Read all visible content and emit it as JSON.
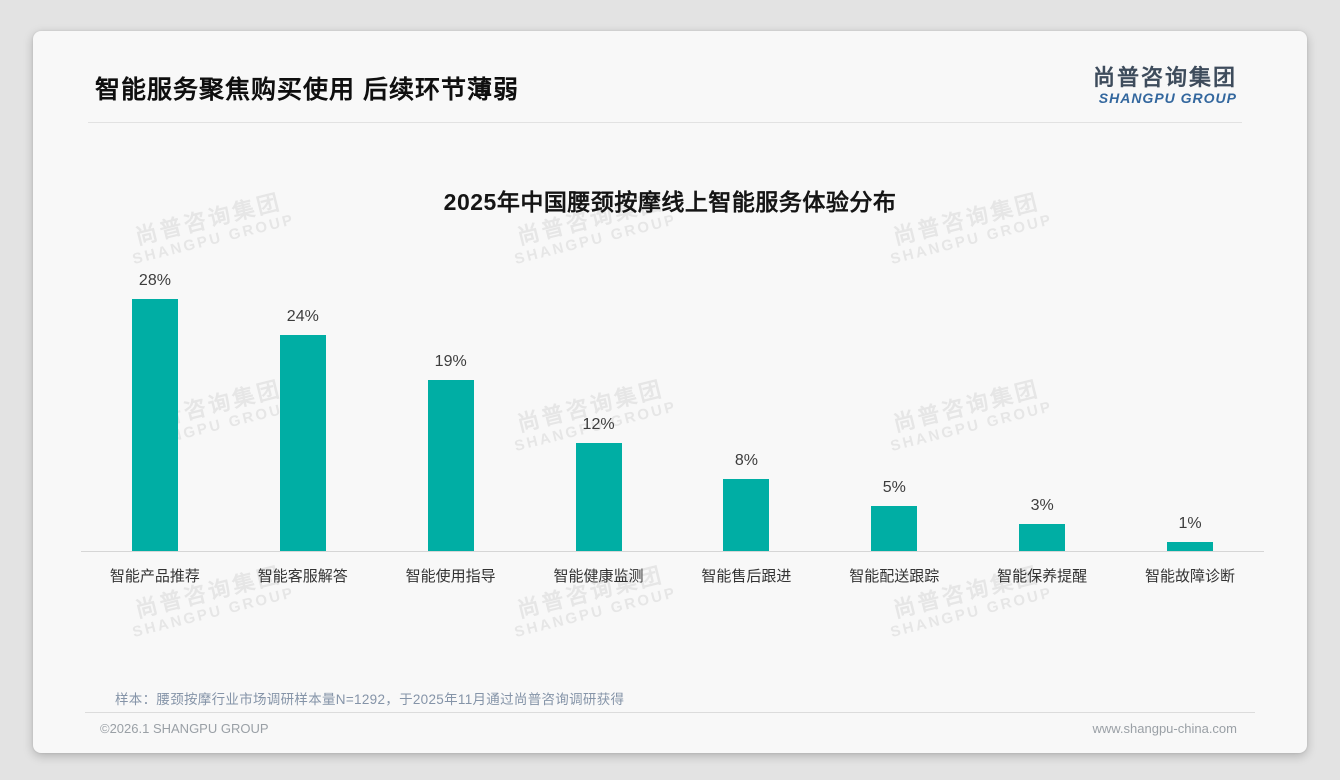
{
  "page": {
    "slide_title": "智能服务聚焦购买使用 后续环节薄弱",
    "logo": {
      "cn": "尚普咨询集团",
      "en": "SHANGPU GROUP"
    },
    "watermark": {
      "cn": "尚普咨询集团",
      "en": "SHANGPU GROUP"
    },
    "footnote": "样本：腰颈按摩行业市场调研样本量N=1292，于2025年11月通过尚普咨询调研获得",
    "footer": {
      "left": "©2026.1 SHANGPU GROUP",
      "right": "www.shangpu-china.com"
    },
    "colors": {
      "bar": "#00AEA4",
      "logo_en": "#33679E",
      "axis": "#D6D6D6"
    }
  },
  "chart_data": {
    "type": "bar",
    "title": "2025年中国腰颈按摩线上智能服务体验分布",
    "categories": [
      "智能产品推荐",
      "智能客服解答",
      "智能使用指导",
      "智能健康监测",
      "智能售后跟进",
      "智能配送跟踪",
      "智能保养提醒",
      "智能故障诊断"
    ],
    "values": [
      28,
      24,
      19,
      12,
      8,
      5,
      3,
      1
    ],
    "data_labels": [
      "28%",
      "24%",
      "19%",
      "12%",
      "8%",
      "5%",
      "3%",
      "1%"
    ],
    "unit": "%",
    "xlabel": "",
    "ylabel": "",
    "ylim": [
      0,
      30
    ],
    "grid": false,
    "legend": false,
    "bar_color": "#00AEA4"
  }
}
